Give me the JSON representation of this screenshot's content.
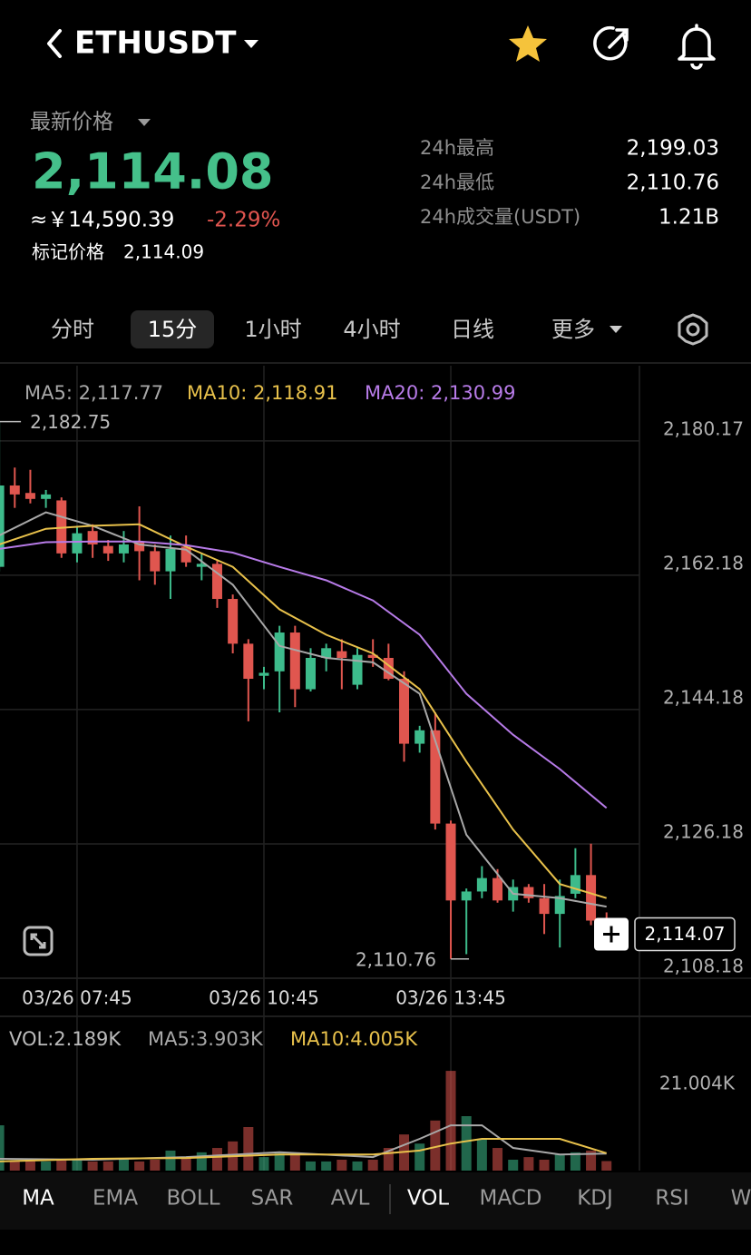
{
  "header": {
    "symbol": "ETHUSDT"
  },
  "price_panel": {
    "label": "最新价格",
    "last": "2,114.08",
    "cny": "≈￥14,590.39",
    "change": "-2.29%",
    "mark_label": "标记价格",
    "mark": "2,114.09",
    "stats": [
      {
        "label": "24h最高",
        "value": "2,199.03"
      },
      {
        "label": "24h最低",
        "value": "2,110.76"
      },
      {
        "label": "24h成交量(USDT)",
        "value": "1.21B"
      }
    ]
  },
  "tabs": [
    "分时",
    "15分",
    "1小时",
    "4小时",
    "日线",
    "更多"
  ],
  "active_tab_index": 1,
  "indicators": [
    "MA",
    "EMA",
    "BOLL",
    "SAR",
    "AVL",
    "VOL",
    "MACD",
    "KDJ",
    "RSI",
    "W"
  ],
  "active_indicator_indices": [
    0,
    5
  ],
  "chart_data": [
    {
      "type": "candlestick",
      "categories": [
        null,
        null,
        null,
        null,
        null,
        "03/26 07:45",
        null,
        null,
        null,
        null,
        null,
        null,
        null,
        null,
        null,
        null,
        null,
        "03/26 10:45",
        null,
        null,
        null,
        null,
        null,
        null,
        null,
        null,
        null,
        null,
        null,
        "03/26 13:45",
        null,
        null,
        null,
        null,
        null,
        null,
        null,
        null,
        null,
        null
      ],
      "open": [
        2163.3,
        2174.2,
        2173.2,
        2172.4,
        2172.2,
        2165.1,
        2168.1,
        2166.1,
        2165.1,
        2166.7,
        2165.4,
        2162.7,
        2166.0,
        2163.3,
        2163.7,
        2159.0,
        2153.0,
        2148.7,
        2149.3,
        2154.5,
        2146.9,
        2151.1,
        2152.0,
        2147.5,
        2151.5,
        2151.1,
        2148.3,
        2139.6,
        2141.4,
        2128.9,
        2118.6,
        2119.8,
        2121.6,
        2118.6,
        2120.4,
        2118.9,
        2116.8,
        2119.5,
        2122.0,
        2115.9
      ],
      "high": [
        2182.75,
        2176.6,
        2176.3,
        2173.6,
        2172.6,
        2168.8,
        2169.0,
        2166.9,
        2168.1,
        2171.4,
        2166.3,
        2167.5,
        2167.5,
        2165.1,
        2164.1,
        2159.6,
        2153.6,
        2149.9,
        2155.4,
        2155.4,
        2152.4,
        2153.0,
        2153.6,
        2152.4,
        2153.6,
        2153.0,
        2149.3,
        2142.0,
        2143.8,
        2129.3,
        2120.2,
        2123.2,
        2122.8,
        2121.4,
        2120.8,
        2120.8,
        2121.4,
        2125.6,
        2126.2,
        2117.0
      ],
      "low": [
        2162.7,
        2171.2,
        2171.8,
        2171.2,
        2164.5,
        2163.9,
        2164.5,
        2164.1,
        2163.9,
        2161.5,
        2160.9,
        2159.0,
        2163.3,
        2161.5,
        2157.8,
        2151.7,
        2142.6,
        2146.9,
        2143.8,
        2144.5,
        2146.6,
        2149.3,
        2146.9,
        2146.9,
        2149.9,
        2148.1,
        2137.2,
        2138.4,
        2128.1,
        2110.76,
        2111.4,
        2118.9,
        2118.3,
        2117.1,
        2118.3,
        2114.1,
        2112.3,
        2118.9,
        2115.3,
        2113.8
      ],
      "close": [
        2174.2,
        2173.0,
        2172.4,
        2173.0,
        2165.1,
        2167.8,
        2166.3,
        2165.1,
        2166.3,
        2165.4,
        2162.7,
        2165.7,
        2163.9,
        2163.7,
        2159.0,
        2153.0,
        2148.3,
        2149.1,
        2154.5,
        2146.9,
        2151.1,
        2152.4,
        2151.1,
        2151.5,
        2151.1,
        2148.3,
        2139.6,
        2141.4,
        2128.9,
        2118.6,
        2119.8,
        2121.6,
        2118.6,
        2120.4,
        2118.9,
        2116.8,
        2119.2,
        2122.0,
        2115.9,
        2114.07
      ],
      "up_color": "#3dbb8b",
      "down_color": "#e0564f",
      "series": [
        {
          "name": "MA5: 2,117.77",
          "color": "#a8a8a8",
          "x": [
            0,
            3,
            6,
            9,
            12,
            15,
            18,
            21,
            24,
            27,
            30,
            33,
            36,
            39
          ],
          "values": [
            2167.5,
            2170.6,
            2168.8,
            2166.3,
            2165.6,
            2160.9,
            2152.7,
            2151.1,
            2150.5,
            2146.3,
            2127.4,
            2119.5,
            2118.9,
            2117.77
          ]
        },
        {
          "name": "MA10: 2,118.91",
          "color": "#e8c14b",
          "x": [
            0,
            3,
            6,
            9,
            12,
            15,
            18,
            21,
            24,
            27,
            30,
            33,
            36,
            39
          ],
          "values": [
            2166.3,
            2168.4,
            2168.8,
            2169.0,
            2166.0,
            2163.3,
            2157.6,
            2154.2,
            2151.7,
            2146.9,
            2137.2,
            2128.1,
            2120.8,
            2118.91
          ]
        },
        {
          "name": "MA20: 2,130.99",
          "color": "#b77be8",
          "x": [
            0,
            3,
            6,
            9,
            12,
            15,
            18,
            21,
            24,
            27,
            30,
            33,
            36,
            39
          ],
          "values": [
            2165.7,
            2166.6,
            2166.7,
            2166.7,
            2166.2,
            2165.2,
            2163.3,
            2161.5,
            2158.8,
            2154.2,
            2146.3,
            2140.8,
            2136.2,
            2130.99
          ]
        }
      ],
      "ylim": [
        2108.18,
        2190.25
      ],
      "yticks": [
        {
          "value": 2180.17,
          "label": "2,180.17"
        },
        {
          "value": 2162.18,
          "label": "2,162.18"
        },
        {
          "value": 2144.18,
          "label": "2,144.18"
        },
        {
          "value": 2126.18,
          "label": "2,126.18"
        },
        {
          "value": 2108.18,
          "label": "2,108.18"
        }
      ],
      "annotations": {
        "high": "2,182.75",
        "low": "2,110.76",
        "last": "2,114.07"
      },
      "grid": true
    },
    {
      "type": "bar",
      "values": [
        10400,
        2100,
        2500,
        2100,
        2500,
        2500,
        2100,
        2100,
        2500,
        2100,
        2500,
        4600,
        2900,
        4200,
        5200,
        6700,
        10000,
        3100,
        4200,
        4200,
        2100,
        2100,
        2500,
        2100,
        2500,
        5200,
        8300,
        6200,
        11500,
        22900,
        12500,
        7300,
        5200,
        2500,
        3100,
        2500,
        3700,
        4200,
        4600,
        2189
      ],
      "name": "VOL:2.189K",
      "series": [
        {
          "name": "MA5:3.903K",
          "color": "#a8a8a8",
          "x": [
            0,
            6,
            12,
            18,
            24,
            27,
            29,
            31,
            33,
            36,
            39
          ],
          "values": [
            2700,
            2500,
            3100,
            4200,
            3100,
            7300,
            10400,
            10400,
            5200,
            3700,
            3903
          ]
        },
        {
          "name": "MA10:4.005K",
          "color": "#e8c14b",
          "x": [
            0,
            6,
            12,
            18,
            24,
            27,
            29,
            31,
            33,
            36,
            39
          ],
          "values": [
            2100,
            2700,
            2900,
            3700,
            3700,
            4600,
            6200,
            7300,
            7300,
            7300,
            4005
          ]
        }
      ],
      "ylim": [
        0,
        25000
      ],
      "yticks": [
        {
          "value": 21004,
          "label": "21.004K"
        }
      ]
    }
  ]
}
